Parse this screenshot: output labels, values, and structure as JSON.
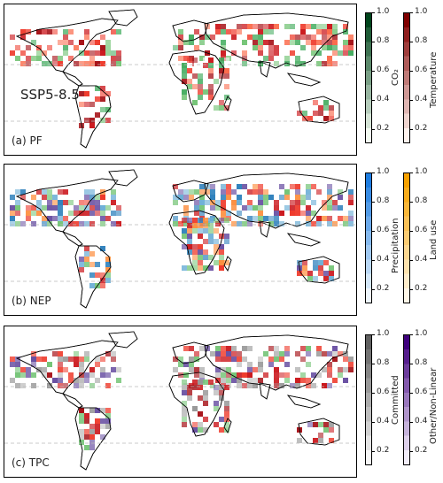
{
  "scenario_label": "SSP5-8.5",
  "panels": [
    {
      "label": "(a) PF",
      "colorbars": [
        {
          "name": "CO$_2$",
          "display": "CO₂",
          "color_low": "#f3fbf1",
          "color_high": "#00441b"
        },
        {
          "name": "Temperature",
          "display": "Temperature",
          "color_low": "#fff3ee",
          "color_high": "#7f0000"
        }
      ]
    },
    {
      "label": "(b) NEP",
      "colorbars": [
        {
          "name": "Precipitation",
          "display": "Precipitation",
          "color_low": "#eef6fd",
          "color_high": "#1e7de0"
        },
        {
          "name": "Land use",
          "display": "Land use",
          "color_low": "#fff7e8",
          "color_high": "#f7a100"
        }
      ]
    },
    {
      "label": "(c) TPC",
      "colorbars": [
        {
          "name": "Committed",
          "display": "Committed",
          "color_low": "#f7f7f7",
          "color_high": "#606060"
        },
        {
          "name": "Other/Non-Linear",
          "display": "Other/Non-Linear",
          "color_low": "#f3eefa",
          "color_high": "#3f007d"
        }
      ]
    }
  ],
  "colorbar_ticks": [
    "1.0",
    "0.8",
    "0.6",
    "0.4",
    "0.2"
  ],
  "colorbar_range": [
    0.1,
    1.0
  ]
}
